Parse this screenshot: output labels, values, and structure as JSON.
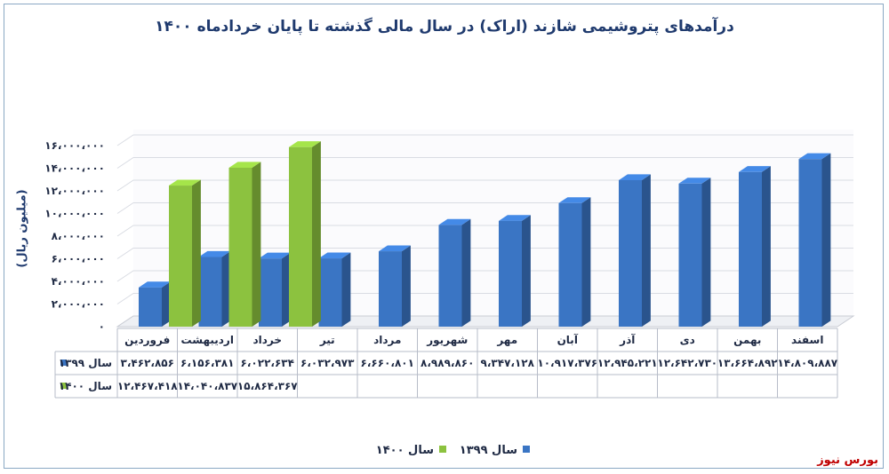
{
  "brand": "بورس نیوز",
  "chart_data": {
    "type": "bar",
    "title": "درآمدهای پتروشیمی شازند (اراک) در سال مالی گذشته تا پایان خردادماه ۱۴۰۰",
    "ylabel": "(میلیون ریال)",
    "ylim": [
      0,
      16000000
    ],
    "yticks": [
      "۰",
      "۲،۰۰۰،۰۰۰",
      "۴،۰۰۰،۰۰۰",
      "۶،۰۰۰،۰۰۰",
      "۸،۰۰۰،۰۰۰",
      "۱۰،۰۰۰،۰۰۰",
      "۱۲،۰۰۰،۰۰۰",
      "۱۴،۰۰۰،۰۰۰",
      "۱۶،۰۰۰،۰۰۰"
    ],
    "ytick_values": [
      0,
      2000000,
      4000000,
      6000000,
      8000000,
      10000000,
      12000000,
      14000000,
      16000000
    ],
    "categories": [
      "فروردین",
      "اردیبهشت",
      "خرداد",
      "تیر",
      "مرداد",
      "شهریور",
      "مهر",
      "آبان",
      "آذر",
      "دی",
      "بهمن",
      "اسفند"
    ],
    "series": [
      {
        "name": "سال ۱۳۹۹",
        "color": "#3a75c4",
        "values": [
          3462856,
          6156381,
          6022634,
          6032973,
          6660801,
          8989860,
          9347128,
          10917376,
          12945221,
          12642730,
          13664892,
          14809887
        ],
        "labels": [
          "۳،۴۶۲،۸۵۶",
          "۶،۱۵۶،۳۸۱",
          "۶،۰۲۲،۶۳۴",
          "۶،۰۳۲،۹۷۳",
          "۶،۶۶۰،۸۰۱",
          "۸،۹۸۹،۸۶۰",
          "۹،۳۴۷،۱۲۸",
          "۱۰،۹۱۷،۳۷۶",
          "۱۲،۹۴۵،۲۲۱",
          "۱۲،۶۴۲،۷۳۰",
          "۱۳،۶۶۴،۸۹۲",
          "۱۴،۸۰۹،۸۸۷"
        ]
      },
      {
        "name": "سال ۱۴۰۰",
        "color": "#8cc23f",
        "values": [
          12467418,
          14040837,
          15864367,
          null,
          null,
          null,
          null,
          null,
          null,
          null,
          null,
          null
        ],
        "labels": [
          "۱۲،۴۶۷،۴۱۸",
          "۱۴،۰۴۰،۸۳۷",
          "۱۵،۸۶۴،۳۶۷",
          "",
          "",
          "",
          "",
          "",
          "",
          "",
          "",
          ""
        ]
      }
    ],
    "legend_position": "bottom-center",
    "grid": true
  }
}
